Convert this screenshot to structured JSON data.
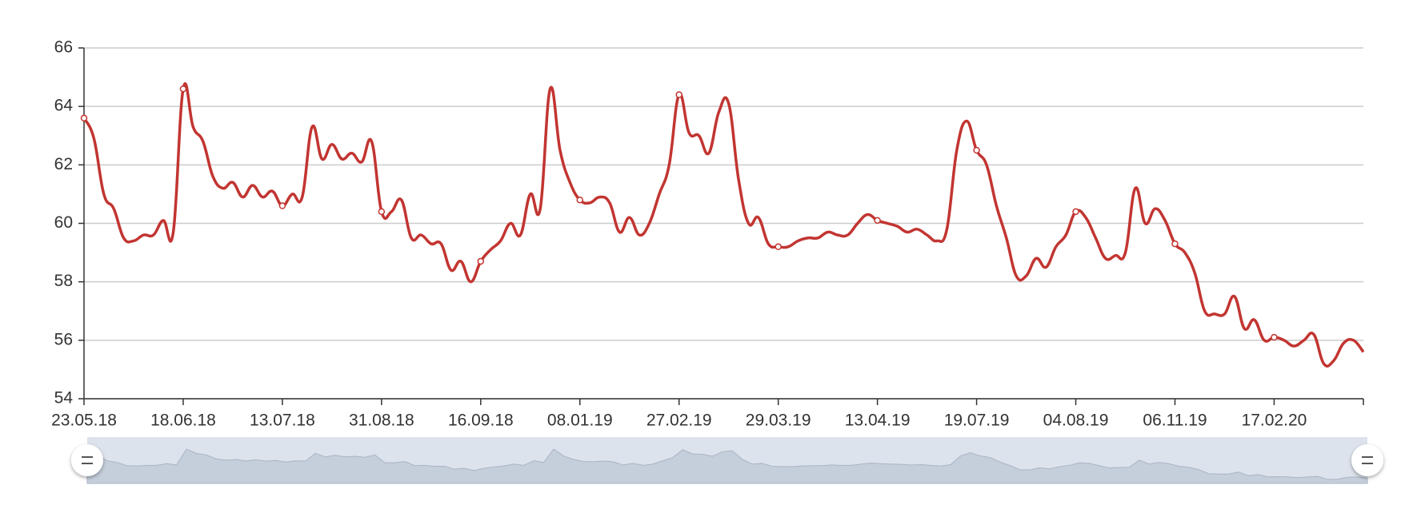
{
  "chart_data": {
    "type": "line",
    "categories": [
      "23.05.18",
      null,
      null,
      null,
      null,
      null,
      null,
      null,
      null,
      null,
      "18.06.18",
      null,
      null,
      null,
      null,
      null,
      null,
      null,
      null,
      null,
      "13.07.18",
      null,
      null,
      null,
      null,
      null,
      null,
      null,
      null,
      null,
      "31.08.18",
      null,
      null,
      null,
      null,
      null,
      null,
      null,
      null,
      null,
      "16.09.18",
      null,
      null,
      null,
      null,
      null,
      null,
      null,
      null,
      null,
      "08.01.19",
      null,
      null,
      null,
      null,
      null,
      null,
      null,
      null,
      null,
      "27.02.19",
      null,
      null,
      null,
      null,
      null,
      null,
      null,
      null,
      null,
      "29.03.19",
      null,
      null,
      null,
      null,
      null,
      null,
      null,
      null,
      null,
      "13.04.19",
      null,
      null,
      null,
      null,
      null,
      null,
      null,
      null,
      null,
      "19.07.19",
      null,
      null,
      null,
      null,
      null,
      null,
      null,
      null,
      null,
      "04.08.19",
      null,
      null,
      null,
      null,
      null,
      null,
      null,
      null,
      null,
      "06.11.19",
      null,
      null,
      null,
      null,
      null,
      null,
      null,
      null,
      null,
      "17.02.20",
      null,
      null,
      null,
      null,
      null,
      null,
      null,
      null,
      null
    ],
    "series": [
      {
        "color": "#c23531",
        "values": [
          63.6,
          62.9,
          61.0,
          60.5,
          59.5,
          59.4,
          59.6,
          59.6,
          60.1,
          59.7,
          64.6,
          63.3,
          62.8,
          61.6,
          61.2,
          61.4,
          60.9,
          61.3,
          60.9,
          61.1,
          60.6,
          61.0,
          60.9,
          63.3,
          62.2,
          62.7,
          62.2,
          62.4,
          62.1,
          62.8,
          60.4,
          60.4,
          60.8,
          59.5,
          59.6,
          59.3,
          59.3,
          58.4,
          58.7,
          58.0,
          58.7,
          59.1,
          59.4,
          60.0,
          59.6,
          61.0,
          60.5,
          64.6,
          62.5,
          61.4,
          60.8,
          60.7,
          60.9,
          60.7,
          59.7,
          60.2,
          59.6,
          60.0,
          61.0,
          62.0,
          64.4,
          63.1,
          63.0,
          62.4,
          63.8,
          64.1,
          61.5,
          60.0,
          60.2,
          59.3,
          59.2,
          59.2,
          59.4,
          59.5,
          59.5,
          59.7,
          59.6,
          59.6,
          60.0,
          60.3,
          60.1,
          60.0,
          59.9,
          59.7,
          59.8,
          59.6,
          59.4,
          59.8,
          62.5,
          63.5,
          62.5,
          62.0,
          60.6,
          59.5,
          58.2,
          58.2,
          58.8,
          58.5,
          59.2,
          59.6,
          60.4,
          60.2,
          59.5,
          58.8,
          58.9,
          59.0,
          61.2,
          60.0,
          60.5,
          60.1,
          59.3,
          59.0,
          58.3,
          57.0,
          56.9,
          56.9,
          57.5,
          56.4,
          56.7,
          56.0,
          56.1,
          56.0,
          55.8,
          56.0,
          56.2,
          55.2,
          55.3,
          55.9,
          56.0,
          55.6
        ]
      }
    ],
    "ylim": [
      54,
      66
    ],
    "yticks": [
      54,
      56,
      58,
      60,
      62,
      64,
      66
    ],
    "grid": true
  }
}
